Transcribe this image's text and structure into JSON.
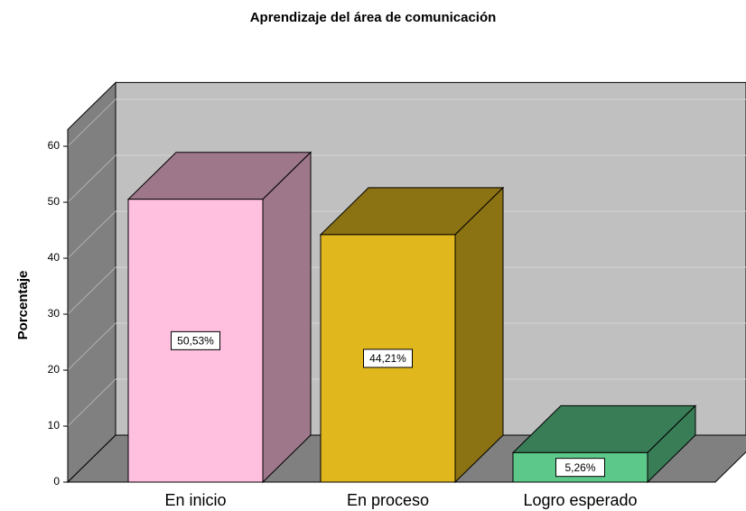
{
  "chart_data": {
    "type": "bar",
    "title": "Aprendizaje del área de comunicación",
    "ylabel": "Porcentaje",
    "categories": [
      "En inicio",
      "En proceso",
      "Logro esperado"
    ],
    "values": [
      50.53,
      44.21,
      5.26
    ],
    "value_labels": [
      "50,53%",
      "44,21%",
      "5,26%"
    ],
    "colors": [
      "#ffc0e0",
      "#e0b81e",
      "#5cc98a"
    ],
    "ylim": [
      0,
      63
    ],
    "yticks": [
      0,
      10,
      20,
      30,
      40,
      50,
      60
    ],
    "grid": true
  }
}
